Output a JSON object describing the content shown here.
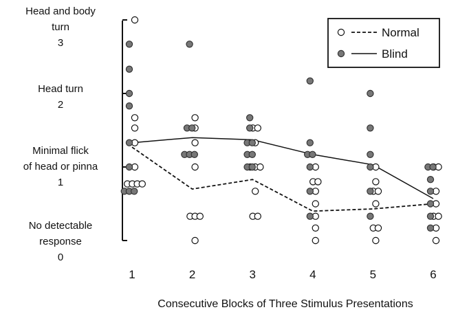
{
  "chart_data": {
    "type": "scatter",
    "xlabel": "Consecutive Blocks of Three Stimulus Presentations",
    "x_ticks": [
      "1",
      "2",
      "3",
      "4",
      "5",
      "6"
    ],
    "ylim": [
      0,
      3
    ],
    "y_levels": [
      {
        "value": 3,
        "lines": [
          "Head and body",
          "turn",
          "3"
        ]
      },
      {
        "value": 2,
        "lines": [
          "Head turn",
          "2"
        ]
      },
      {
        "value": 1,
        "lines": [
          "Minimal flick",
          "of head or pinna",
          "1"
        ]
      },
      {
        "value": 0,
        "lines": [
          "No detectable",
          "response",
          "0"
        ]
      }
    ],
    "legend_position": "top-right",
    "series": [
      {
        "name": "Normal",
        "marker": "open-circle",
        "line": "dashed",
        "color": "#111111",
        "mean": [
          1.27,
          0.7,
          0.83,
          0.4,
          0.43,
          0.5
        ],
        "points": [
          {
            "x": 1,
            "y": 3.0
          },
          {
            "x": 1,
            "y": 1.67
          },
          {
            "x": 1,
            "y": 1.53
          },
          {
            "x": 1,
            "y": 1.33
          },
          {
            "x": 1,
            "y": 1.0
          },
          {
            "x": 1,
            "y": 0.77
          },
          {
            "x": 1,
            "y": 0.77
          },
          {
            "x": 1,
            "y": 0.77
          },
          {
            "x": 1,
            "y": 0.77
          },
          {
            "x": 2,
            "y": 1.67
          },
          {
            "x": 2,
            "y": 1.53
          },
          {
            "x": 2,
            "y": 1.33
          },
          {
            "x": 2,
            "y": 1.0
          },
          {
            "x": 2,
            "y": 0.33
          },
          {
            "x": 2,
            "y": 0.33
          },
          {
            "x": 2,
            "y": 0.33
          },
          {
            "x": 2,
            "y": 0.0
          },
          {
            "x": 3,
            "y": 1.53
          },
          {
            "x": 3,
            "y": 1.53
          },
          {
            "x": 3,
            "y": 1.33
          },
          {
            "x": 3,
            "y": 1.0
          },
          {
            "x": 3,
            "y": 1.0
          },
          {
            "x": 3,
            "y": 1.0
          },
          {
            "x": 3,
            "y": 0.67
          },
          {
            "x": 3,
            "y": 0.33
          },
          {
            "x": 3,
            "y": 0.33
          },
          {
            "x": 4,
            "y": 1.0
          },
          {
            "x": 4,
            "y": 0.8
          },
          {
            "x": 4,
            "y": 0.8
          },
          {
            "x": 4,
            "y": 0.67
          },
          {
            "x": 4,
            "y": 0.5
          },
          {
            "x": 4,
            "y": 0.33
          },
          {
            "x": 4,
            "y": 0.17
          },
          {
            "x": 4,
            "y": 0.0
          },
          {
            "x": 5,
            "y": 1.0
          },
          {
            "x": 5,
            "y": 0.8
          },
          {
            "x": 5,
            "y": 0.67
          },
          {
            "x": 5,
            "y": 0.67
          },
          {
            "x": 5,
            "y": 0.5
          },
          {
            "x": 5,
            "y": 0.17
          },
          {
            "x": 5,
            "y": 0.17
          },
          {
            "x": 5,
            "y": 0.0
          },
          {
            "x": 6,
            "y": 1.0
          },
          {
            "x": 6,
            "y": 1.0
          },
          {
            "x": 6,
            "y": 0.67
          },
          {
            "x": 6,
            "y": 0.5
          },
          {
            "x": 6,
            "y": 0.33
          },
          {
            "x": 6,
            "y": 0.33
          },
          {
            "x": 6,
            "y": 0.17
          },
          {
            "x": 6,
            "y": 0.0
          }
        ]
      },
      {
        "name": "Blind",
        "marker": "filled-circle",
        "line": "solid",
        "color": "#777777",
        "mean": [
          1.33,
          1.4,
          1.37,
          1.17,
          1.03,
          0.57
        ],
        "points": [
          {
            "x": 1,
            "y": 2.67
          },
          {
            "x": 1,
            "y": 2.33
          },
          {
            "x": 1,
            "y": 2.0
          },
          {
            "x": 1,
            "y": 1.83
          },
          {
            "x": 1,
            "y": 1.33
          },
          {
            "x": 1,
            "y": 1.0
          },
          {
            "x": 1,
            "y": 0.67
          },
          {
            "x": 1,
            "y": 0.67
          },
          {
            "x": 1,
            "y": 0.67
          },
          {
            "x": 2,
            "y": 2.67
          },
          {
            "x": 2,
            "y": 1.53
          },
          {
            "x": 2,
            "y": 1.53
          },
          {
            "x": 2,
            "y": 1.17
          },
          {
            "x": 2,
            "y": 1.17
          },
          {
            "x": 2,
            "y": 1.17
          },
          {
            "x": 3,
            "y": 1.67
          },
          {
            "x": 3,
            "y": 1.53
          },
          {
            "x": 3,
            "y": 1.33
          },
          {
            "x": 3,
            "y": 1.33
          },
          {
            "x": 3,
            "y": 1.17
          },
          {
            "x": 3,
            "y": 1.17
          },
          {
            "x": 3,
            "y": 1.0
          },
          {
            "x": 3,
            "y": 1.0
          },
          {
            "x": 4,
            "y": 2.17
          },
          {
            "x": 4,
            "y": 1.33
          },
          {
            "x": 4,
            "y": 1.17
          },
          {
            "x": 4,
            "y": 1.17
          },
          {
            "x": 4,
            "y": 1.0
          },
          {
            "x": 4,
            "y": 0.67
          },
          {
            "x": 4,
            "y": 0.33
          },
          {
            "x": 5,
            "y": 2.0
          },
          {
            "x": 5,
            "y": 1.53
          },
          {
            "x": 5,
            "y": 1.17
          },
          {
            "x": 5,
            "y": 1.0
          },
          {
            "x": 5,
            "y": 0.67
          },
          {
            "x": 5,
            "y": 0.33
          },
          {
            "x": 6,
            "y": 1.0
          },
          {
            "x": 6,
            "y": 1.0
          },
          {
            "x": 6,
            "y": 0.83
          },
          {
            "x": 6,
            "y": 0.67
          },
          {
            "x": 6,
            "y": 0.5
          },
          {
            "x": 6,
            "y": 0.33
          },
          {
            "x": 6,
            "y": 0.17
          }
        ]
      }
    ]
  }
}
